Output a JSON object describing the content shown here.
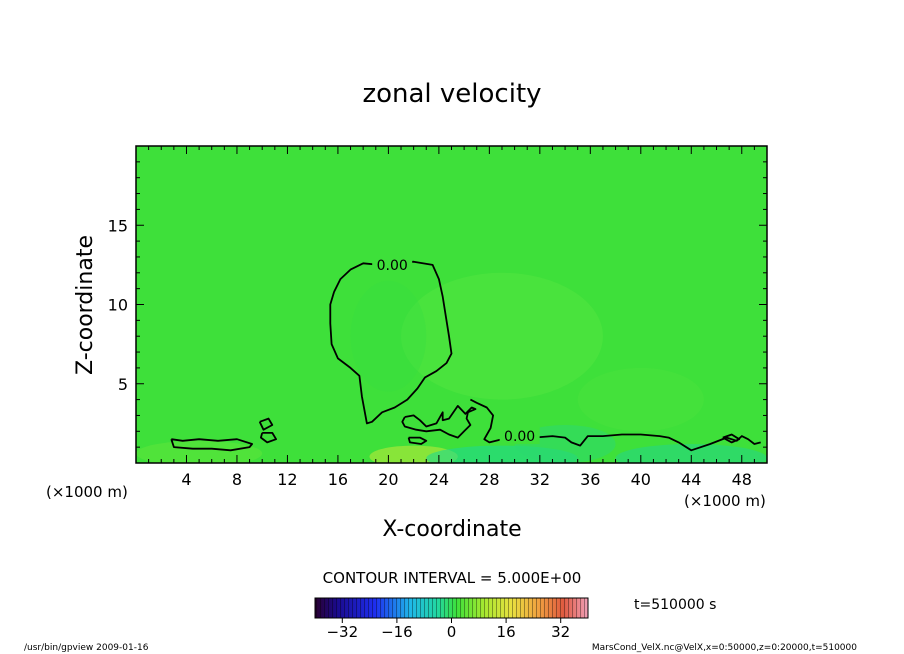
{
  "chart_data": {
    "type": "heatmap",
    "title": "zonal velocity",
    "xlabel": "X-coordinate",
    "ylabel": "Z-coordinate",
    "x_unit": "(×1000 m)",
    "z_unit": "(×1000 m)",
    "xlim": [
      0,
      50
    ],
    "ylim": [
      0,
      20
    ],
    "x_ticks": [
      4,
      8,
      12,
      16,
      20,
      24,
      28,
      32,
      36,
      40,
      44,
      48
    ],
    "x_tick_labels": [
      "4",
      "8",
      "12",
      "16",
      "20",
      "24",
      "28",
      "32",
      "36",
      "40",
      "44",
      "48"
    ],
    "y_ticks": [
      5,
      10,
      15
    ],
    "y_tick_labels": [
      "5",
      "10",
      "15"
    ],
    "field_base_color": "#3ee03a",
    "contour_level_label": "0.00",
    "contour_interval_text": "CONTOUR INTERVAL = 5.000E+00",
    "time_text": "t=510000 s",
    "colorbar": {
      "range": [
        -40,
        40
      ],
      "ticks": [
        -32,
        -16,
        0,
        16,
        32
      ],
      "tick_labels": [
        "−32",
        "−16",
        "0",
        "16",
        "32"
      ]
    },
    "contour_labels": [
      {
        "x": 20.3,
        "z": 12.5,
        "text": "0.00"
      },
      {
        "x": 30.4,
        "z": 1.7,
        "text": "0.00"
      }
    ],
    "contours": [
      [
        [
          15.7,
          10.8
        ],
        [
          16.2,
          11.6
        ],
        [
          17.0,
          12.2
        ],
        [
          18.0,
          12.6
        ],
        [
          19.3,
          12.5
        ],
        [
          20.5,
          12.6
        ],
        [
          22.0,
          12.7
        ],
        [
          23.5,
          12.5
        ],
        [
          24.0,
          11.6
        ],
        [
          24.3,
          10.5
        ],
        [
          24.5,
          9.5
        ],
        [
          24.8,
          8.0
        ],
        [
          25.0,
          6.9
        ],
        [
          24.6,
          6.3
        ],
        [
          23.8,
          5.8
        ],
        [
          22.9,
          5.4
        ],
        [
          22.3,
          4.7
        ],
        [
          21.5,
          4.0
        ],
        [
          20.5,
          3.5
        ],
        [
          19.5,
          3.2
        ],
        [
          18.7,
          2.6
        ],
        [
          18.3,
          2.5
        ],
        [
          17.9,
          4.2
        ],
        [
          17.7,
          5.5
        ],
        [
          17.0,
          6.0
        ],
        [
          16.0,
          6.6
        ],
        [
          15.5,
          7.5
        ],
        [
          15.4,
          8.8
        ],
        [
          15.4,
          10.0
        ],
        [
          15.7,
          10.8
        ]
      ],
      [
        [
          2.8,
          1.5
        ],
        [
          3.7,
          1.4
        ],
        [
          5.0,
          1.5
        ],
        [
          6.5,
          1.4
        ],
        [
          8.0,
          1.5
        ],
        [
          9.2,
          1.2
        ],
        [
          9.0,
          1.0
        ],
        [
          7.5,
          0.8
        ],
        [
          6.0,
          0.9
        ],
        [
          4.5,
          0.9
        ],
        [
          3.0,
          1.0
        ],
        [
          2.8,
          1.5
        ]
      ],
      [
        [
          9.8,
          2.6
        ],
        [
          10.5,
          2.8
        ],
        [
          10.8,
          2.4
        ],
        [
          10.1,
          2.1
        ],
        [
          9.8,
          2.6
        ]
      ],
      [
        [
          10.0,
          1.9
        ],
        [
          10.8,
          1.9
        ],
        [
          11.1,
          1.5
        ],
        [
          10.4,
          1.3
        ],
        [
          9.9,
          1.6
        ],
        [
          10.0,
          1.9
        ]
      ],
      [
        [
          21.3,
          2.9
        ],
        [
          22.0,
          3.0
        ],
        [
          22.5,
          2.7
        ],
        [
          23.0,
          2.3
        ],
        [
          23.8,
          2.5
        ],
        [
          24.3,
          3.2
        ],
        [
          24.3,
          2.7
        ],
        [
          24.8,
          2.8
        ],
        [
          25.5,
          3.6
        ],
        [
          26.1,
          3.1
        ],
        [
          26.6,
          3.5
        ],
        [
          26.9,
          3.4
        ],
        [
          26.3,
          3.2
        ],
        [
          26.2,
          2.8
        ],
        [
          26.5,
          2.4
        ],
        [
          26.0,
          2.0
        ],
        [
          25.5,
          1.6
        ],
        [
          24.8,
          1.8
        ],
        [
          24.1,
          2.1
        ],
        [
          23.0,
          2.0
        ],
        [
          22.2,
          2.1
        ],
        [
          21.3,
          2.3
        ],
        [
          21.1,
          2.6
        ],
        [
          21.3,
          2.9
        ]
      ],
      [
        [
          21.6,
          1.6
        ],
        [
          22.5,
          1.6
        ],
        [
          23.0,
          1.4
        ],
        [
          22.6,
          1.2
        ],
        [
          21.7,
          1.3
        ],
        [
          21.6,
          1.6
        ]
      ],
      [
        [
          26.5,
          4.0
        ],
        [
          27.0,
          3.8
        ],
        [
          27.8,
          3.5
        ],
        [
          28.3,
          3.0
        ],
        [
          28.1,
          2.2
        ],
        [
          27.6,
          1.5
        ],
        [
          28.0,
          1.3
        ],
        [
          29.0,
          1.5
        ],
        [
          29.9,
          1.7
        ],
        [
          31.5,
          1.6
        ],
        [
          33.0,
          1.7
        ],
        [
          34.0,
          1.6
        ],
        [
          34.5,
          1.3
        ],
        [
          35.2,
          1.1
        ],
        [
          35.8,
          1.7
        ],
        [
          37.0,
          1.7
        ],
        [
          38.5,
          1.8
        ],
        [
          40.0,
          1.8
        ],
        [
          41.5,
          1.7
        ],
        [
          42.2,
          1.6
        ],
        [
          43.0,
          1.3
        ],
        [
          44.0,
          0.8
        ],
        [
          45.5,
          1.2
        ],
        [
          46.8,
          1.6
        ],
        [
          47.6,
          1.4
        ],
        [
          48.0,
          1.7
        ],
        [
          48.5,
          1.5
        ],
        [
          49.0,
          1.2
        ],
        [
          49.5,
          1.3
        ]
      ],
      [
        [
          46.5,
          1.6
        ],
        [
          47.2,
          1.8
        ],
        [
          47.8,
          1.5
        ],
        [
          47.2,
          1.3
        ],
        [
          46.5,
          1.6
        ]
      ]
    ],
    "color_patches": [
      {
        "x": 22,
        "z": 0.4,
        "rx": 3.5,
        "rz": 0.7,
        "color": "#9be63a",
        "opacity": 0.8
      },
      {
        "x": 29,
        "z": 0.3,
        "rx": 6,
        "rz": 0.8,
        "color": "#1fd88d",
        "opacity": 0.6
      },
      {
        "x": 34,
        "z": 1.2,
        "rx": 4,
        "rz": 1.2,
        "color": "#2cd870",
        "opacity": 0.55
      },
      {
        "x": 44,
        "z": 0.3,
        "rx": 6,
        "rz": 0.9,
        "color": "#23d58a",
        "opacity": 0.55
      },
      {
        "x": 5,
        "z": 0.6,
        "rx": 5,
        "rz": 0.8,
        "color": "#5ee63a",
        "opacity": 0.55
      },
      {
        "x": 29,
        "z": 8,
        "rx": 8,
        "rz": 4,
        "color": "#5fe845",
        "opacity": 0.35
      },
      {
        "x": 20,
        "z": 8,
        "rx": 3,
        "rz": 3.5,
        "color": "#36dc42",
        "opacity": 0.35
      },
      {
        "x": 40,
        "z": 4,
        "rx": 5,
        "rz": 2,
        "color": "#54e63f",
        "opacity": 0.3
      }
    ]
  },
  "footer": {
    "left": "/usr/bin/gpview   2009-01-16",
    "right": "MarsCond_VelX.nc@VelX,x=0:50000,z=0:20000,t=510000"
  }
}
